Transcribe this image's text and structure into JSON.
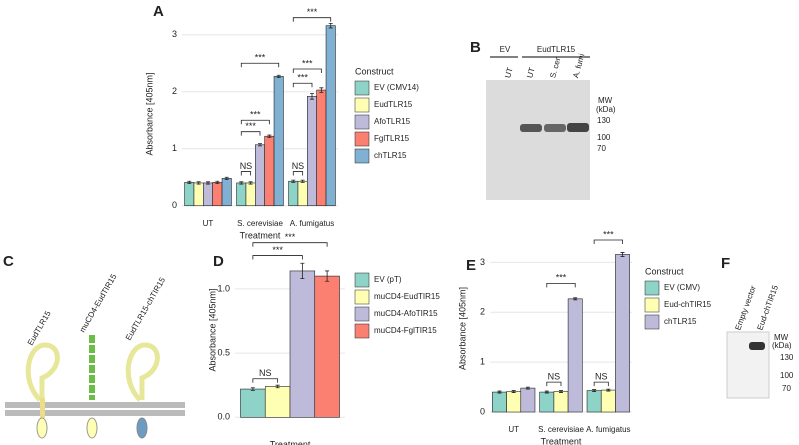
{
  "panel_labels": [
    "A",
    "B",
    "C",
    "D",
    "E",
    "F"
  ],
  "chart_data": [
    {
      "type": "bar",
      "ylabel": "Absorbance [405nm]",
      "xlabel": "Treatment",
      "legend_title": "Construct",
      "legend": "right",
      "grid": true,
      "categories": [
        "UT",
        "S. cerevisiae",
        "A. fumigatus"
      ],
      "series": [
        {
          "name": "EV (CMV14)",
          "color": "#8dd3c7",
          "values": [
            0.41,
            0.4,
            0.43
          ],
          "errors": [
            0.02,
            0.02,
            0.02
          ]
        },
        {
          "name": "EudTLR15",
          "color": "#ffffb3",
          "values": [
            0.4,
            0.4,
            0.43
          ],
          "errors": [
            0.02,
            0.02,
            0.02
          ]
        },
        {
          "name": "AfoTLR15",
          "color": "#bebada",
          "values": [
            0.4,
            1.07,
            1.92
          ],
          "errors": [
            0.02,
            0.02,
            0.05
          ]
        },
        {
          "name": "FglTLR15",
          "color": "#fb8072",
          "values": [
            0.41,
            1.22,
            2.03
          ],
          "errors": [
            0.02,
            0.02,
            0.04
          ]
        },
        {
          "name": "chTLR15",
          "color": "#80b1d3",
          "values": [
            0.48,
            2.27,
            3.16
          ],
          "errors": [
            0.02,
            0.02,
            0.04
          ]
        }
      ],
      "ylim": [
        -0.18,
        3.4
      ],
      "yticks": [
        0,
        1,
        2,
        3
      ],
      "annotations": [
        "NS",
        "***",
        "***",
        "***",
        "NS",
        "***",
        "***",
        "***"
      ]
    },
    {
      "type": "bar",
      "ylabel": "Absorbance [405nm]",
      "xlabel": "Treatment",
      "legend": "right",
      "grid": true,
      "categories": [
        null
      ],
      "series": [
        {
          "name": "EV (pT)",
          "color": "#8dd3c7",
          "values": [
            0.22
          ],
          "errors": [
            0.01
          ]
        },
        {
          "name": "muCD4-EudTIR15",
          "color": "#ffffb3",
          "values": [
            0.24
          ],
          "errors": [
            0.01
          ]
        },
        {
          "name": "muCD4-AfoTIR15",
          "color": "#bebada",
          "values": [
            1.14
          ],
          "errors": [
            0.06
          ]
        },
        {
          "name": "muCD4-FglTIR15",
          "color": "#fb8072",
          "values": [
            1.1
          ],
          "errors": [
            0.04
          ]
        }
      ],
      "ylim": [
        -0.06,
        1.42
      ],
      "yticks": [
        {
          "value": 0,
          "label": "0.0"
        },
        {
          "value": 0.5,
          "label": "0.5"
        },
        {
          "value": 1,
          "label": "1.0"
        }
      ],
      "annotations": [
        "NS",
        "***",
        "***"
      ]
    },
    {
      "type": "bar",
      "ylabel": "Absorbance [405nm]",
      "xlabel": "Treatment",
      "legend_title": "Construct",
      "legend": "right",
      "grid": true,
      "categories": [
        "UT",
        "S. cerevisiae",
        "A. fumigatus"
      ],
      "series": [
        {
          "name": "EV (CMV)",
          "color": "#8dd3c7",
          "values": [
            0.4,
            0.4,
            0.43
          ],
          "errors": [
            0.02,
            0.02,
            0.02
          ]
        },
        {
          "name": "Eud-chTIR15",
          "color": "#ffffb3",
          "values": [
            0.41,
            0.41,
            0.44
          ],
          "errors": [
            0.02,
            0.02,
            0.02
          ]
        },
        {
          "name": "chTLR15",
          "color": "#bebada",
          "values": [
            0.48,
            2.27,
            3.16
          ],
          "errors": [
            0.02,
            0.02,
            0.04
          ]
        }
      ],
      "ylim": [
        -0.2,
        3.55
      ],
      "yticks": [
        0,
        1,
        2,
        3
      ],
      "annotations": [
        "NS",
        "***",
        "NS",
        "***"
      ]
    }
  ],
  "blot_b": {
    "groups": [
      "EV",
      "EudTLR15"
    ],
    "lanes": [
      "UT",
      "UT",
      "S. cer",
      "A. fumi"
    ],
    "mw_title": [
      "MW",
      "(kDa)"
    ],
    "markers": [
      "130",
      "100",
      "70"
    ]
  },
  "diagram_c": {
    "labels": [
      "EudTLR15",
      "muCD4-EudTIR15",
      "EudTLR15-chTIR15"
    ]
  },
  "blot_f": {
    "lanes": [
      "Empty vector",
      "Eud-chTIR15"
    ],
    "mw_title": [
      "MW",
      "(kDa)"
    ],
    "markers": [
      "130",
      "100",
      "70"
    ]
  }
}
